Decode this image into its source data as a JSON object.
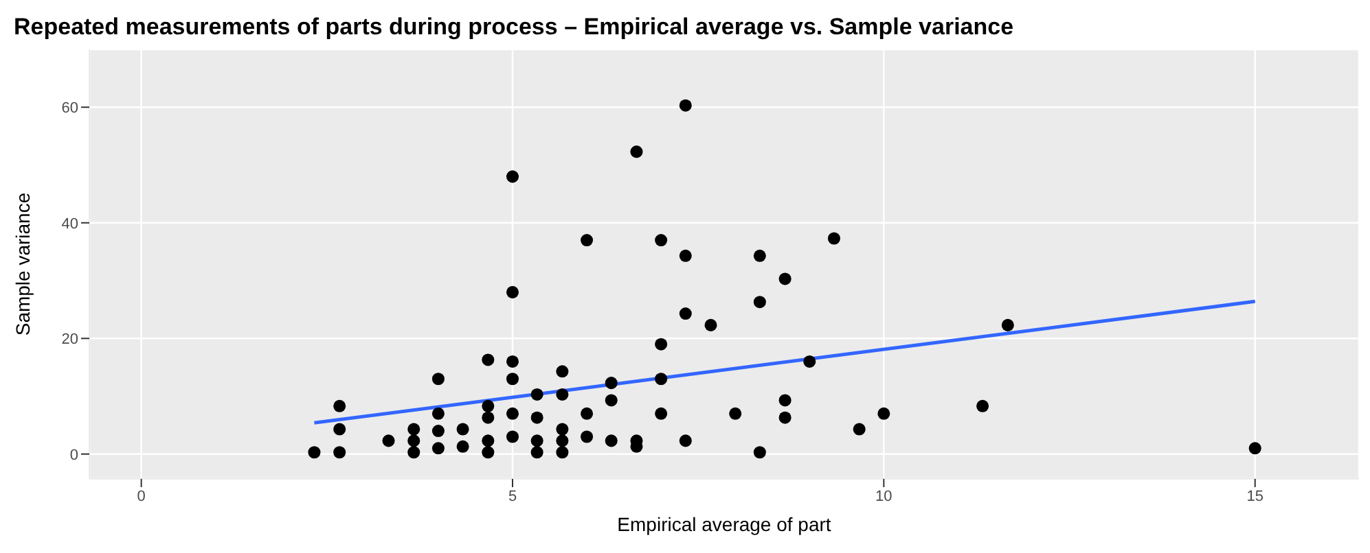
{
  "chart_data": {
    "type": "scatter",
    "title": "Repeated measurements of parts during process – Empirical average vs. Sample variance",
    "xlabel": "Empirical average of part",
    "ylabel": "Sample variance",
    "xlim": [
      -0.7,
      16.4
    ],
    "xticks": [
      0,
      5,
      10,
      15
    ],
    "ylim": [
      -4.3,
      70
    ],
    "yticks": [
      0,
      20,
      40,
      60
    ],
    "grid": true,
    "marker": "circle",
    "series": [
      {
        "color": "#000000",
        "x": [
          2.33,
          2.67,
          2.67,
          2.67,
          3.33,
          3.67,
          3.67,
          3.67,
          4,
          4,
          4,
          4,
          4.33,
          4.33,
          4.67,
          4.67,
          4.67,
          4.67,
          4.67,
          5,
          5,
          5,
          5,
          5,
          5,
          5.33,
          5.33,
          5.33,
          5.33,
          5.67,
          5.67,
          5.67,
          5.67,
          5.67,
          6,
          6,
          6,
          6.33,
          6.33,
          6.33,
          6.67,
          6.67,
          6.67,
          7,
          7,
          7,
          7,
          7.33,
          7.33,
          7.33,
          7.33,
          7.67,
          8,
          8.33,
          8.33,
          8.33,
          8.67,
          8.67,
          8.67,
          9,
          9.33,
          9.67,
          10,
          11.33,
          11.67,
          15
        ],
        "values": [
          0.3,
          0.3,
          4.3,
          8.3,
          2.3,
          0.3,
          2.3,
          4.3,
          1,
          4,
          7,
          13,
          1.3,
          4.3,
          0.3,
          2.3,
          6.3,
          8.3,
          16.3,
          3,
          7,
          13,
          16,
          28,
          48,
          0.3,
          2.3,
          6.3,
          10.3,
          0.3,
          2.3,
          4.3,
          10.3,
          14.3,
          3,
          7,
          37,
          2.3,
          9.3,
          12.3,
          1.3,
          2.3,
          52.3,
          7,
          13,
          19,
          37,
          2.3,
          24.3,
          34.3,
          60.3,
          22.3,
          7,
          0.3,
          26.3,
          34.3,
          6.3,
          9.3,
          30.3,
          16,
          37.3,
          4.3,
          7,
          8.3,
          22.3,
          1
        ]
      },
      {
        "type": "line",
        "color": "#3366ff",
        "x": [
          2.33,
          15
        ],
        "values": [
          5.4,
          26.4
        ],
        "marker": "none"
      }
    ]
  }
}
